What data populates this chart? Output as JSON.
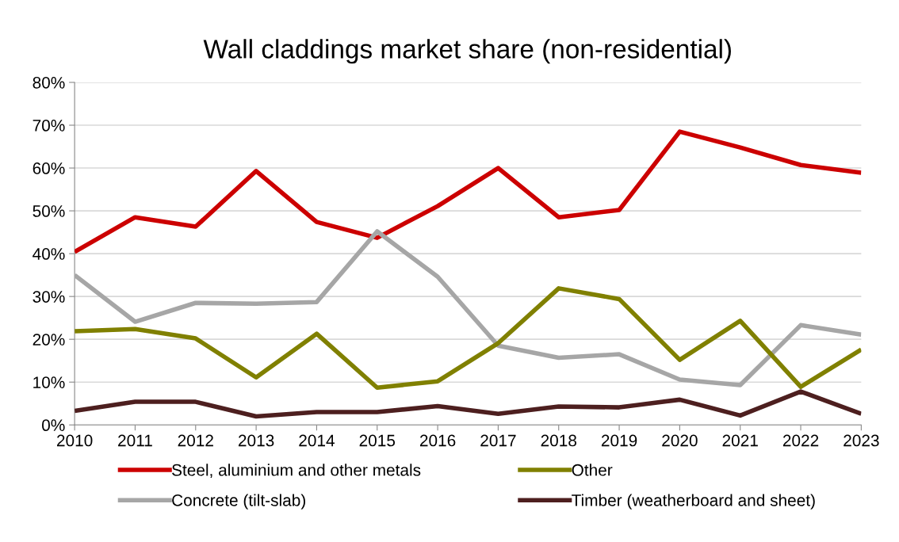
{
  "chart_data": {
    "type": "line",
    "title": "Wall claddings market share (non-residential)",
    "x": [
      2010,
      2011,
      2012,
      2013,
      2014,
      2015,
      2016,
      2017,
      2018,
      2019,
      2020,
      2021,
      2022,
      2023
    ],
    "series": [
      {
        "name": "Steel, aluminium and other metals",
        "color": "#cc0000",
        "values": [
          40.4,
          48.5,
          46.3,
          59.3,
          47.4,
          43.7,
          51.1,
          60,
          48.5,
          50.2,
          68.5,
          64.8,
          60.7,
          58.9
        ]
      },
      {
        "name": "Concrete (tilt-slab)",
        "color": "#a6a6a6",
        "values": [
          35,
          24.1,
          28.5,
          28.3,
          28.7,
          45.2,
          34.6,
          18.5,
          15.7,
          16.5,
          10.6,
          9.3,
          23.3,
          21.1
        ]
      },
      {
        "name": "Other",
        "color": "#808000",
        "values": [
          21.9,
          22.4,
          20.2,
          11.1,
          21.3,
          8.7,
          10.2,
          19.1,
          31.9,
          29.4,
          15.2,
          24.3,
          8.9,
          17.6
        ]
      },
      {
        "name": "Timber (weatherboard and sheet)",
        "color": "#4d1f1f",
        "values": [
          3.3,
          5.4,
          5.4,
          2.0,
          3.0,
          3.0,
          4.4,
          2.6,
          4.3,
          4.1,
          5.9,
          2.2,
          7.8,
          2.6
        ]
      }
    ],
    "xlim": [
      2010,
      2023
    ],
    "xticks": [
      2010,
      2011,
      2012,
      2013,
      2014,
      2015,
      2016,
      2017,
      2018,
      2019,
      2020,
      2021,
      2022,
      2023
    ],
    "ylim": [
      0,
      80
    ],
    "yticks": [
      {
        "value": 0,
        "label": "0%"
      },
      {
        "value": 10,
        "label": "10%"
      },
      {
        "value": 20,
        "label": "20%"
      },
      {
        "value": 30,
        "label": "30%"
      },
      {
        "value": 40,
        "label": "40%"
      },
      {
        "value": 50,
        "label": "50%"
      },
      {
        "value": 60,
        "label": "60%"
      },
      {
        "value": 70,
        "label": "70%"
      },
      {
        "value": 80,
        "label": "80%"
      }
    ],
    "grid": "y",
    "legend": "bottom",
    "marker": "none",
    "line_style": "solid"
  }
}
